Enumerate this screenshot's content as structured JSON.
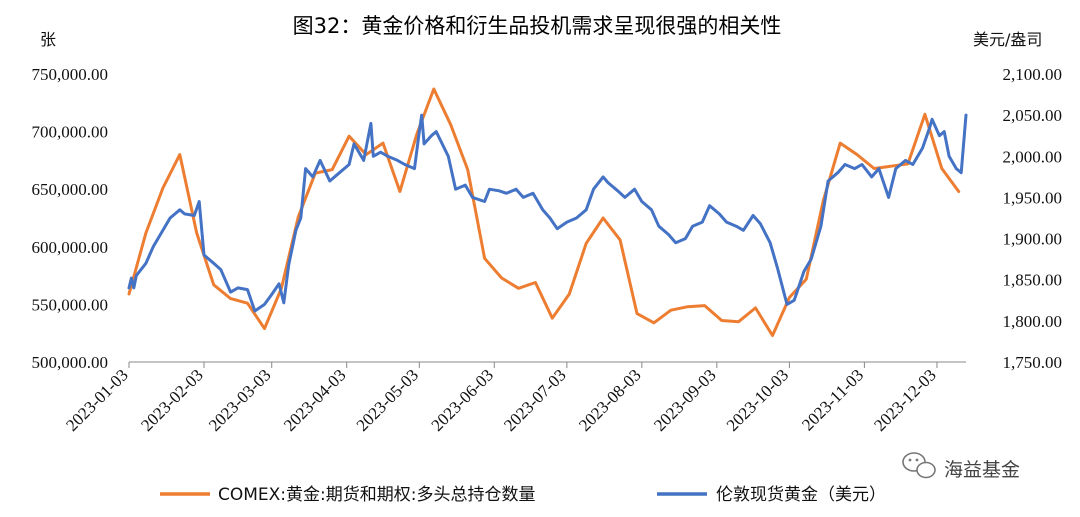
{
  "chart_data": {
    "type": "line",
    "title": "图32：黄金价格和衍生品投机需求呈现很强的相关性",
    "left_axis_unit": "张",
    "right_axis_unit": "美元/盎司",
    "y_left": {
      "min": 500000,
      "max": 750000,
      "ticks": [
        "500,000.00",
        "550,000.00",
        "600,000.00",
        "650,000.00",
        "700,000.00",
        "750,000.00"
      ]
    },
    "y_right": {
      "min": 1750,
      "max": 2100,
      "ticks": [
        "1,750.00",
        "1,800.00",
        "1,850.00",
        "1,900.00",
        "1,950.00",
        "2,000.00",
        "2,050.00",
        "2,100.00"
      ]
    },
    "x_ticks": [
      "2023-01-03",
      "2023-02-03",
      "2023-03-03",
      "2023-04-03",
      "2023-05-03",
      "2023-06-03",
      "2023-07-03",
      "2023-08-03",
      "2023-09-03",
      "2023-10-03",
      "2023-11-03",
      "2023-12-03"
    ],
    "x_range": [
      "2023-01-03",
      "2023-12-15"
    ],
    "grid": false,
    "legend_position": "bottom",
    "series": [
      {
        "name": "COMEX:黄金:期货和期权:多头总持仓数量",
        "axis": "left",
        "color": "#ED7D31",
        "x": [
          "2023-01-03",
          "2023-01-10",
          "2023-01-17",
          "2023-01-24",
          "2023-01-31",
          "2023-02-07",
          "2023-02-14",
          "2023-02-21",
          "2023-02-28",
          "2023-03-07",
          "2023-03-14",
          "2023-03-21",
          "2023-03-28",
          "2023-04-04",
          "2023-04-11",
          "2023-04-18",
          "2023-04-25",
          "2023-05-02",
          "2023-05-09",
          "2023-05-16",
          "2023-05-23",
          "2023-05-30",
          "2023-06-06",
          "2023-06-13",
          "2023-06-20",
          "2023-06-27",
          "2023-07-04",
          "2023-07-11",
          "2023-07-18",
          "2023-07-25",
          "2023-08-01",
          "2023-08-08",
          "2023-08-15",
          "2023-08-22",
          "2023-08-29",
          "2023-09-05",
          "2023-09-12",
          "2023-09-19",
          "2023-09-26",
          "2023-10-03",
          "2023-10-10",
          "2023-10-17",
          "2023-10-24",
          "2023-10-31",
          "2023-11-07",
          "2023-11-14",
          "2023-11-21",
          "2023-11-28",
          "2023-12-05",
          "2023-12-12"
        ],
        "values": [
          559000,
          612000,
          651000,
          680000,
          612000,
          567000,
          555000,
          551000,
          529000,
          564000,
          626000,
          664000,
          667000,
          696000,
          680000,
          690000,
          648000,
          698000,
          737000,
          706000,
          667000,
          590000,
          573000,
          564000,
          569000,
          538000,
          559000,
          603000,
          625000,
          606000,
          542000,
          534000,
          545000,
          548000,
          549000,
          536000,
          535000,
          547000,
          523000,
          556000,
          572000,
          640000,
          690000,
          680000,
          668000,
          670000,
          672000,
          715000,
          668000,
          648000
        ]
      },
      {
        "name": "伦敦现货黄金（美元）",
        "axis": "right",
        "color": "#4472C4",
        "x": [
          "2023-01-03",
          "2023-01-04",
          "2023-01-05",
          "2023-01-06",
          "2023-01-10",
          "2023-01-13",
          "2023-01-17",
          "2023-01-20",
          "2023-01-24",
          "2023-01-26",
          "2023-01-30",
          "2023-02-01",
          "2023-02-03",
          "2023-02-07",
          "2023-02-10",
          "2023-02-14",
          "2023-02-17",
          "2023-02-21",
          "2023-02-24",
          "2023-02-28",
          "2023-03-03",
          "2023-03-06",
          "2023-03-08",
          "2023-03-10",
          "2023-03-13",
          "2023-03-15",
          "2023-03-17",
          "2023-03-20",
          "2023-03-23",
          "2023-03-27",
          "2023-03-31",
          "2023-04-04",
          "2023-04-06",
          "2023-04-10",
          "2023-04-13",
          "2023-04-14",
          "2023-04-17",
          "2023-04-20",
          "2023-04-24",
          "2023-04-27",
          "2023-05-01",
          "2023-05-03",
          "2023-05-04",
          "2023-05-05",
          "2023-05-08",
          "2023-05-10",
          "2023-05-15",
          "2023-05-18",
          "2023-05-22",
          "2023-05-25",
          "2023-05-30",
          "2023-06-01",
          "2023-06-05",
          "2023-06-08",
          "2023-06-12",
          "2023-06-15",
          "2023-06-19",
          "2023-06-23",
          "2023-06-26",
          "2023-06-29",
          "2023-07-03",
          "2023-07-07",
          "2023-07-11",
          "2023-07-14",
          "2023-07-18",
          "2023-07-20",
          "2023-07-24",
          "2023-07-27",
          "2023-07-31",
          "2023-08-03",
          "2023-08-07",
          "2023-08-10",
          "2023-08-14",
          "2023-08-17",
          "2023-08-21",
          "2023-08-24",
          "2023-08-28",
          "2023-08-31",
          "2023-09-04",
          "2023-09-07",
          "2023-09-11",
          "2023-09-14",
          "2023-09-18",
          "2023-09-21",
          "2023-09-25",
          "2023-09-28",
          "2023-10-02",
          "2023-10-05",
          "2023-10-09",
          "2023-10-12",
          "2023-10-16",
          "2023-10-19",
          "2023-10-23",
          "2023-10-26",
          "2023-10-30",
          "2023-11-02",
          "2023-11-06",
          "2023-11-09",
          "2023-11-13",
          "2023-11-16",
          "2023-11-20",
          "2023-11-23",
          "2023-11-27",
          "2023-11-30",
          "2023-12-01",
          "2023-12-04",
          "2023-12-06",
          "2023-12-08",
          "2023-12-11",
          "2023-12-13",
          "2023-12-15"
        ],
        "values": [
          1840,
          1852,
          1840,
          1855,
          1870,
          1890,
          1910,
          1925,
          1935,
          1930,
          1928,
          1945,
          1880,
          1870,
          1862,
          1835,
          1840,
          1838,
          1812,
          1820,
          1832,
          1845,
          1822,
          1868,
          1910,
          1925,
          1985,
          1975,
          1995,
          1970,
          1980,
          1990,
          2015,
          1995,
          2040,
          2000,
          2005,
          2000,
          1995,
          1990,
          1985,
          2030,
          2050,
          2015,
          2025,
          2030,
          2000,
          1960,
          1965,
          1950,
          1945,
          1960,
          1958,
          1955,
          1960,
          1950,
          1955,
          1935,
          1925,
          1912,
          1920,
          1925,
          1935,
          1960,
          1975,
          1968,
          1958,
          1950,
          1960,
          1945,
          1935,
          1915,
          1905,
          1895,
          1900,
          1915,
          1920,
          1940,
          1930,
          1920,
          1915,
          1910,
          1928,
          1918,
          1895,
          1865,
          1820,
          1825,
          1860,
          1875,
          1915,
          1970,
          1980,
          1990,
          1985,
          1990,
          1975,
          1985,
          1950,
          1985,
          1995,
          1990,
          2010,
          2035,
          2045,
          2025,
          2030,
          2000,
          1985,
          1980,
          2050
        ]
      }
    ]
  },
  "legend": {
    "items": [
      "COMEX:黄金:期货和期权:多头总持仓数量",
      "伦敦现货黄金（美元）"
    ]
  },
  "watermark": {
    "text": "海益基金",
    "icon": "wechat-icon"
  }
}
